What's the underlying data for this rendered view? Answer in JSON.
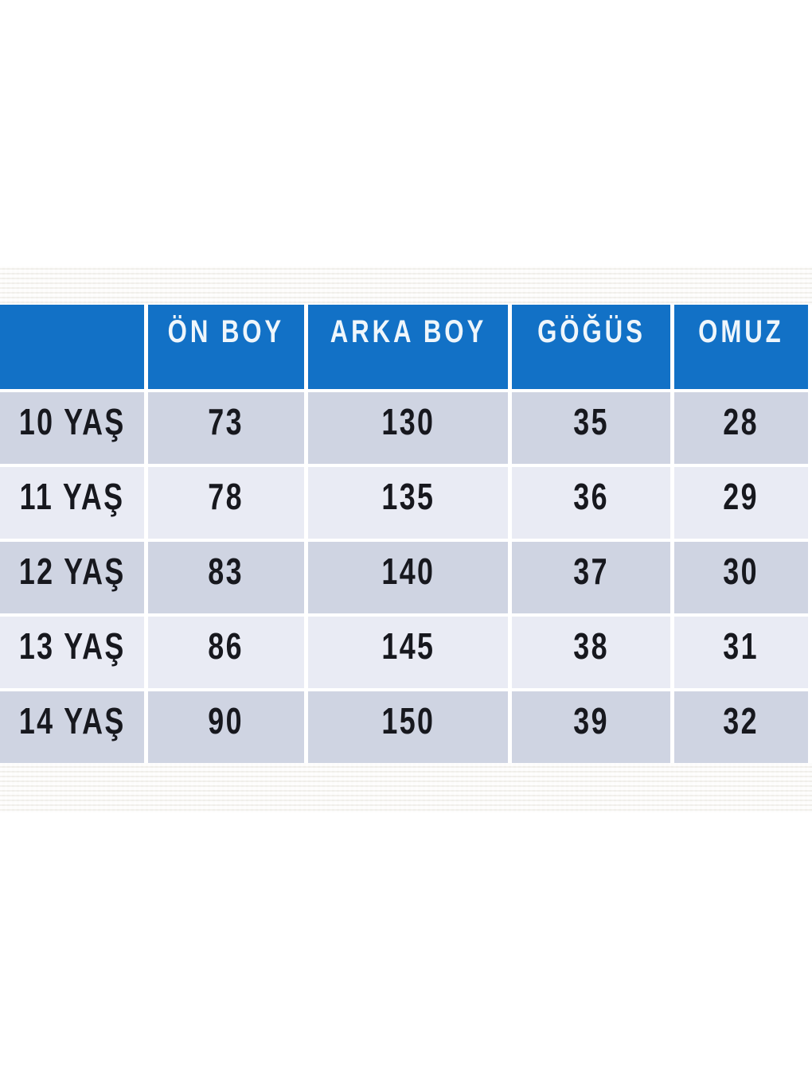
{
  "page": {
    "background": "#ffffff"
  },
  "colors": {
    "header_bg": "#1271c6",
    "header_text": "#eff6fb",
    "row_dark_bg": "#cfd4e2",
    "row_light_bg": "#e9ebf4",
    "body_text": "#17181e",
    "gridline": "#ffffff",
    "texture_band": "#f8f7f4"
  },
  "table": {
    "columns": [
      "",
      "ÖN BOY",
      "ARKA BOY",
      "GÖĞÜS",
      "OMUZ"
    ],
    "rows": [
      {
        "label": "10 YAŞ",
        "values": [
          "73",
          "130",
          "35",
          "28"
        ]
      },
      {
        "label": "11 YAŞ",
        "values": [
          "78",
          "135",
          "36",
          "29"
        ]
      },
      {
        "label": "12 YAŞ",
        "values": [
          "83",
          "140",
          "37",
          "30"
        ]
      },
      {
        "label": "13 YAŞ",
        "values": [
          "86",
          "145",
          "38",
          "31"
        ]
      },
      {
        "label": "14 YAŞ",
        "values": [
          "90",
          "150",
          "39",
          "32"
        ]
      }
    ]
  },
  "chart_data": {
    "type": "table",
    "title": "",
    "columns": [
      "",
      "ÖN BOY",
      "ARKA BOY",
      "GÖĞÜS",
      "OMUZ"
    ],
    "rows": [
      [
        "10 YAŞ",
        73,
        130,
        35,
        28
      ],
      [
        "11 YAŞ",
        78,
        135,
        36,
        29
      ],
      [
        "12 YAŞ",
        83,
        140,
        37,
        30
      ],
      [
        "13 YAŞ",
        86,
        145,
        38,
        31
      ],
      [
        "14 YAŞ",
        90,
        150,
        39,
        32
      ]
    ],
    "layout": {
      "header_fill": "#1271c6",
      "alternating_row_fills": [
        "#cfd4e2",
        "#e9ebf4"
      ],
      "gridlines": "white gaps"
    }
  }
}
